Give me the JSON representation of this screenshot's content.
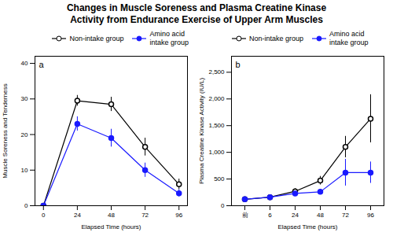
{
  "chart_data": [
    {
      "type": "line",
      "title": "Changes in Muscle Soreness and Plasma Creatine Kinase\nActivity from Endurance Exercise of Upper Arm Muscles",
      "annotations": [
        "a"
      ],
      "xlabel": "Elapsed Time (hours)",
      "ylabel": "Muscle Soreness and Tenderness",
      "x": [
        0,
        24,
        48,
        72,
        96
      ],
      "xlim": [
        -6,
        102
      ],
      "xticks": [
        0,
        24,
        48,
        72,
        96
      ],
      "ylim": [
        0,
        42
      ],
      "yticks": [
        0,
        10,
        20,
        30,
        40
      ],
      "legend": "upper right",
      "series": [
        {
          "name": "Non-intake group",
          "color": "black",
          "marker": "open_circle",
          "values": [
            0,
            29.5,
            28.5,
            16.5,
            6.0
          ],
          "errors": [
            0.0,
            1.5,
            2.0,
            2.5,
            1.5
          ]
        },
        {
          "name": "Amino acid\nintake group",
          "color": "#1a1aff",
          "marker": "circle",
          "values": [
            0,
            23.0,
            19.0,
            10.0,
            3.5
          ],
          "errors": [
            0.0,
            2.0,
            2.5,
            2.0,
            1.0
          ]
        }
      ]
    },
    {
      "type": "line",
      "annotations": [
        "b"
      ],
      "xlabel": "Elapsed Time (hours)",
      "ylabel": "Plasma Creatine Kinase Activity (IU/L)",
      "categories": [
        "前",
        "6",
        "24",
        "48",
        "72",
        "96"
      ],
      "ylim": [
        0,
        2800
      ],
      "yticks": [
        0,
        500,
        {
          "value": 1000,
          "label": "1,000"
        },
        {
          "value": 1500,
          "label": "1,500"
        },
        {
          "value": 2000,
          "label": "2,000"
        },
        {
          "value": 2500,
          "label": "2,500"
        }
      ],
      "legend": "upper left",
      "series": [
        {
          "name": "Non-intake group",
          "color": "black",
          "marker": "open_circle",
          "values": [
            120,
            160,
            270,
            470,
            1100,
            1630
          ],
          "errors": [
            20,
            30,
            50,
            80,
            200,
            450
          ]
        },
        {
          "name": "Amino acid\nintake group",
          "color": "#1a1aff",
          "marker": "circle",
          "values": [
            120,
            160,
            230,
            260,
            620,
            620
          ],
          "errors": [
            20,
            25,
            40,
            50,
            250,
            200
          ]
        }
      ]
    }
  ]
}
